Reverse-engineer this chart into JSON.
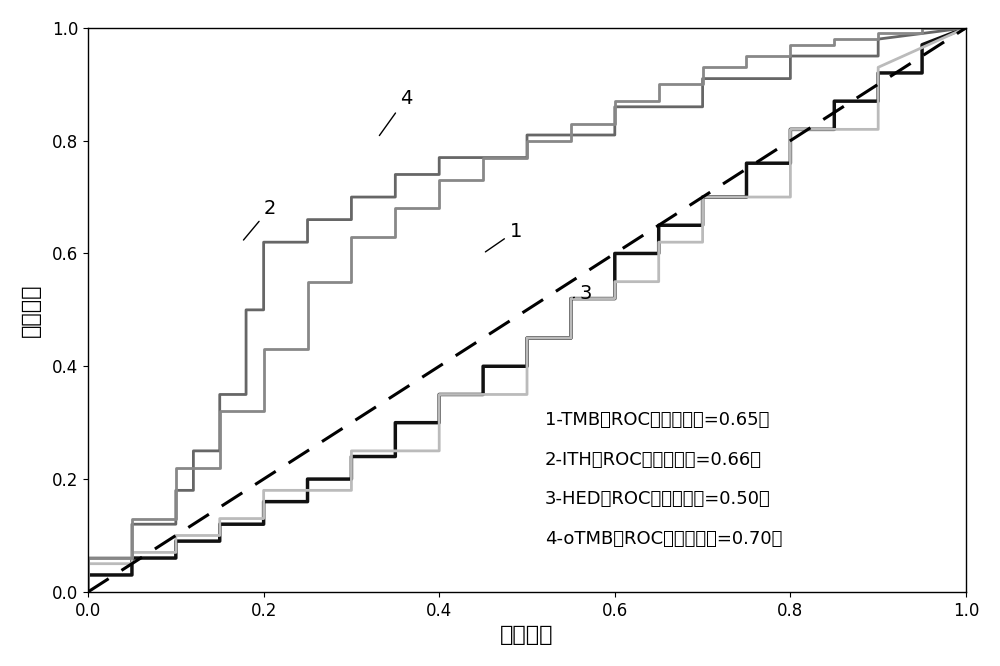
{
  "xlabel": "负正类率",
  "ylabel": "真正类率",
  "xlim": [
    0.0,
    1.0
  ],
  "ylim": [
    0.0,
    1.0
  ],
  "xticks": [
    0.0,
    0.2,
    0.4,
    0.6,
    0.8,
    1.0
  ],
  "yticks": [
    0.0,
    0.2,
    0.4,
    0.6,
    0.8,
    1.0
  ],
  "background_color": "#ffffff",
  "curve1_color": "#111111",
  "curve2_color": "#666666",
  "curve3_color": "#bbbbbb",
  "curve4_color": "#888888",
  "diagonal_color": "#000000",
  "linewidth1": 2.5,
  "linewidth2": 2.0,
  "linewidth3": 2.0,
  "linewidth4": 2.0,
  "linewidth_diag": 2.2,
  "curve1_x": [
    0.0,
    0.0,
    0.05,
    0.05,
    0.1,
    0.1,
    0.15,
    0.15,
    0.2,
    0.2,
    0.25,
    0.25,
    0.3,
    0.3,
    0.35,
    0.35,
    0.4,
    0.4,
    0.45,
    0.45,
    0.5,
    0.5,
    0.55,
    0.55,
    0.6,
    0.6,
    0.65,
    0.65,
    0.7,
    0.7,
    0.75,
    0.75,
    0.8,
    0.8,
    0.85,
    0.85,
    0.9,
    0.9,
    0.95,
    0.95,
    1.0
  ],
  "curve1_y": [
    0.0,
    0.03,
    0.03,
    0.06,
    0.06,
    0.09,
    0.09,
    0.12,
    0.12,
    0.16,
    0.16,
    0.2,
    0.2,
    0.24,
    0.24,
    0.3,
    0.3,
    0.35,
    0.35,
    0.4,
    0.4,
    0.45,
    0.45,
    0.52,
    0.52,
    0.6,
    0.6,
    0.65,
    0.65,
    0.7,
    0.7,
    0.76,
    0.76,
    0.82,
    0.82,
    0.87,
    0.87,
    0.92,
    0.92,
    0.97,
    1.0
  ],
  "curve2_x": [
    0.0,
    0.0,
    0.05,
    0.05,
    0.1,
    0.1,
    0.12,
    0.12,
    0.15,
    0.15,
    0.18,
    0.18,
    0.2,
    0.2,
    0.25,
    0.25,
    0.3,
    0.3,
    0.35,
    0.35,
    0.4,
    0.4,
    0.5,
    0.5,
    0.6,
    0.6,
    0.7,
    0.7,
    0.8,
    0.8,
    0.9,
    0.9,
    1.0
  ],
  "curve2_y": [
    0.0,
    0.06,
    0.06,
    0.12,
    0.12,
    0.18,
    0.18,
    0.25,
    0.25,
    0.35,
    0.35,
    0.5,
    0.5,
    0.62,
    0.62,
    0.66,
    0.66,
    0.7,
    0.7,
    0.74,
    0.74,
    0.77,
    0.77,
    0.81,
    0.81,
    0.86,
    0.86,
    0.91,
    0.91,
    0.95,
    0.95,
    0.98,
    1.0
  ],
  "curve3_x": [
    0.0,
    0.0,
    0.05,
    0.05,
    0.1,
    0.1,
    0.15,
    0.15,
    0.2,
    0.2,
    0.3,
    0.3,
    0.4,
    0.4,
    0.5,
    0.5,
    0.55,
    0.55,
    0.6,
    0.6,
    0.65,
    0.65,
    0.7,
    0.7,
    0.8,
    0.8,
    0.9,
    0.9,
    1.0
  ],
  "curve3_y": [
    0.0,
    0.05,
    0.05,
    0.07,
    0.07,
    0.1,
    0.1,
    0.13,
    0.13,
    0.18,
    0.18,
    0.25,
    0.25,
    0.35,
    0.35,
    0.45,
    0.45,
    0.52,
    0.52,
    0.55,
    0.55,
    0.62,
    0.62,
    0.7,
    0.7,
    0.82,
    0.82,
    0.93,
    1.0
  ],
  "curve4_x": [
    0.0,
    0.0,
    0.05,
    0.05,
    0.1,
    0.1,
    0.15,
    0.15,
    0.2,
    0.2,
    0.25,
    0.25,
    0.3,
    0.3,
    0.35,
    0.35,
    0.4,
    0.4,
    0.45,
    0.45,
    0.5,
    0.5,
    0.55,
    0.55,
    0.6,
    0.6,
    0.65,
    0.65,
    0.7,
    0.7,
    0.75,
    0.75,
    0.8,
    0.8,
    0.85,
    0.85,
    0.9,
    0.9,
    0.95,
    0.95,
    1.0
  ],
  "curve4_y": [
    0.0,
    0.06,
    0.06,
    0.13,
    0.13,
    0.22,
    0.22,
    0.32,
    0.32,
    0.43,
    0.43,
    0.55,
    0.55,
    0.63,
    0.63,
    0.68,
    0.68,
    0.73,
    0.73,
    0.77,
    0.77,
    0.8,
    0.8,
    0.83,
    0.83,
    0.87,
    0.87,
    0.9,
    0.9,
    0.93,
    0.93,
    0.95,
    0.95,
    0.97,
    0.97,
    0.98,
    0.98,
    0.99,
    0.99,
    1.0,
    1.0
  ],
  "fontsize_number": 14,
  "fontsize_axis_label": 16,
  "fontsize_tick": 12,
  "fontsize_anno": 13
}
